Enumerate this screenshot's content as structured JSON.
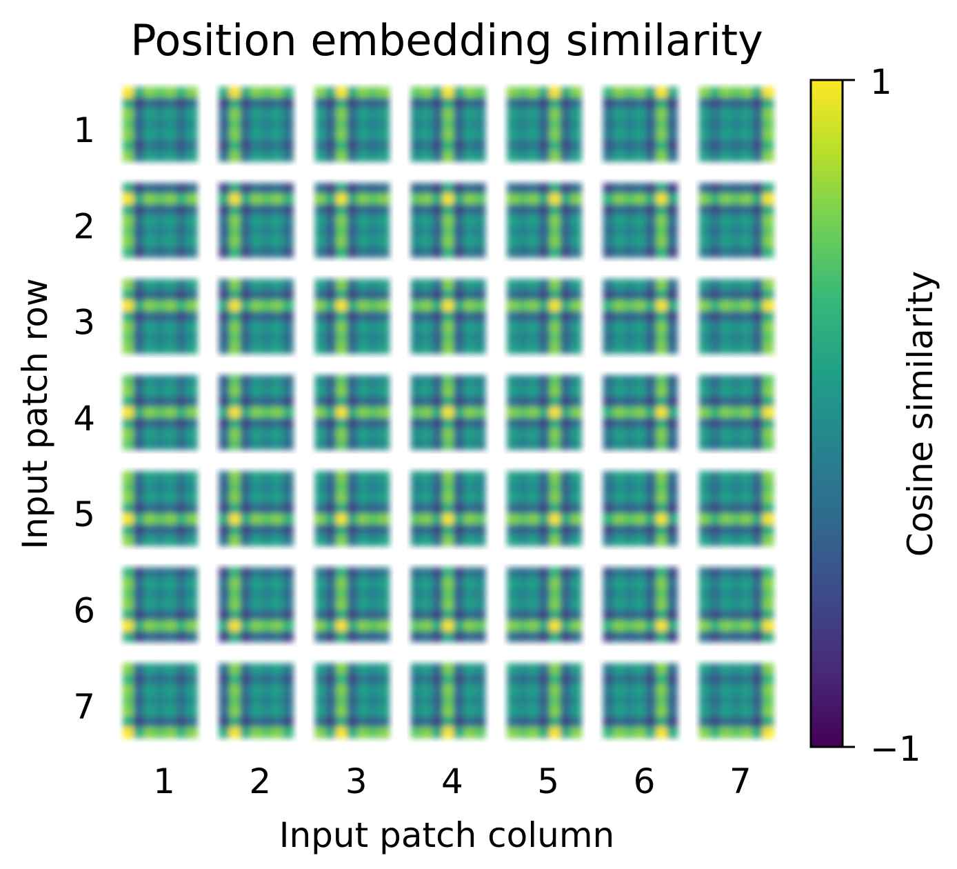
{
  "chart_data": {
    "type": "heatmap",
    "title": "Position embedding similarity",
    "xlabel": "Input patch column",
    "ylabel": "Input patch row",
    "rows": [
      "1",
      "2",
      "3",
      "4",
      "5",
      "6",
      "7"
    ],
    "columns": [
      "1",
      "2",
      "3",
      "4",
      "5",
      "6",
      "7"
    ],
    "grid_size": 7,
    "cell_resolution": 7,
    "colorbar": {
      "label": "Cosine similarity",
      "min": -1,
      "max": 1,
      "tick_labels": [
        "1",
        "−1"
      ],
      "colormap": "viridis"
    },
    "colormap_stops": [
      "#440154",
      "#482878",
      "#3e4989",
      "#31688e",
      "#26828e",
      "#1f9e89",
      "#35b779",
      "#6ece58",
      "#b5de2b",
      "#fde725"
    ]
  }
}
